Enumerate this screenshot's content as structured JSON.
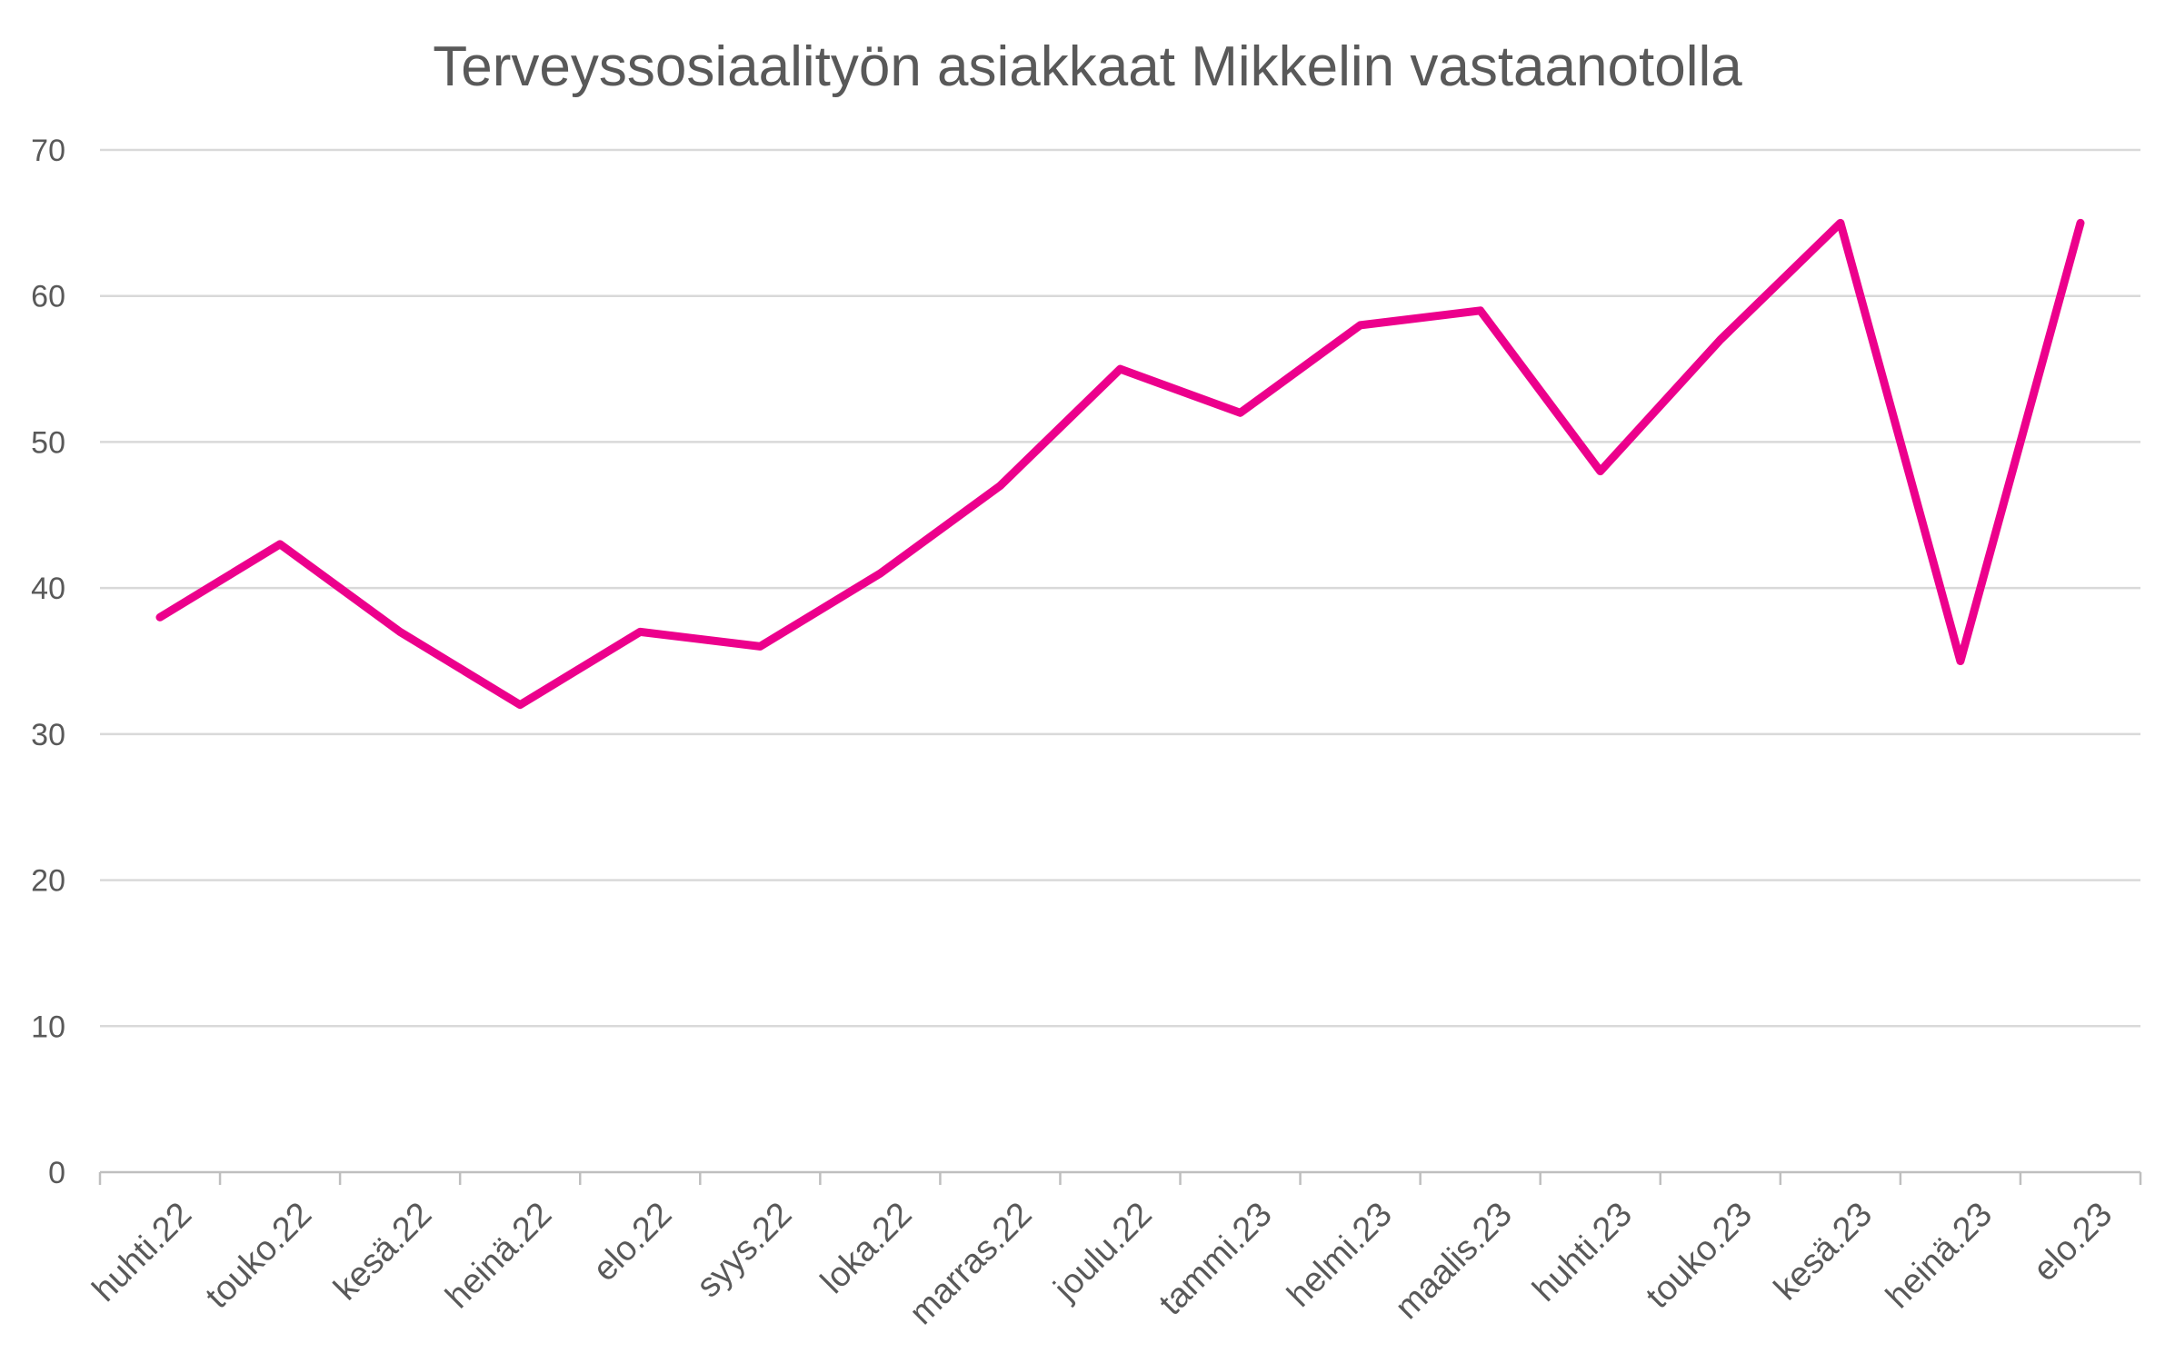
{
  "chart_data": {
    "type": "line",
    "title": "Terveyssosiaalityön asiakkaat Mikkelin vastaanotolla",
    "xlabel": "",
    "ylabel": "",
    "categories": [
      "huhti.22",
      "touko.22",
      "kesä.22",
      "heinä.22",
      "elo.22",
      "syys.22",
      "loka.22",
      "marras.22",
      "joulu.22",
      "tammi.23",
      "helmi.23",
      "maalis.23",
      "huhti.23",
      "touko.23",
      "kesä.23",
      "heinä.23",
      "elo.23"
    ],
    "series": [
      {
        "values": [
          38,
          43,
          37,
          32,
          37,
          36,
          41,
          47,
          55,
          52,
          58,
          59,
          48,
          57,
          65,
          35,
          65
        ],
        "color": "#ec008c"
      }
    ],
    "ylim": [
      0,
      70
    ],
    "yticks": [
      0,
      10,
      20,
      30,
      40,
      50,
      60,
      70
    ],
    "grid": true,
    "legend": "none"
  }
}
